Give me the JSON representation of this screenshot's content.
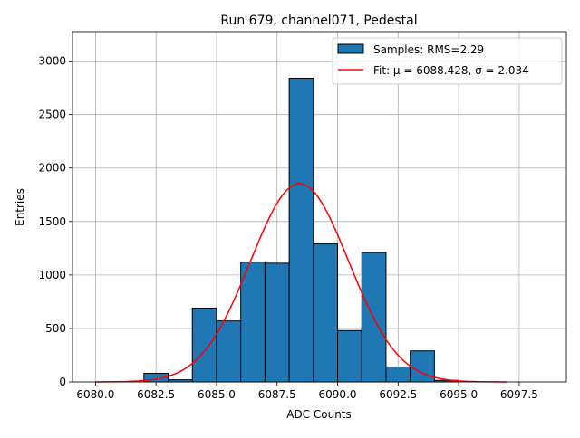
{
  "chart_data": {
    "type": "bar",
    "title": "Run 679, channel071, Pedestal",
    "xlabel": "ADC Counts",
    "ylabel": "Entries",
    "xlim": [
      6079.05,
      6099.45
    ],
    "ylim": [
      0,
      3276
    ],
    "grid": true,
    "legend_position": "top-right",
    "x_ticks": [
      6080.0,
      6082.5,
      6085.0,
      6087.5,
      6090.0,
      6092.5,
      6095.0,
      6097.5
    ],
    "x_tick_labels": [
      "6080.0",
      "6082.5",
      "6085.0",
      "6087.5",
      "6090.0",
      "6092.5",
      "6095.0",
      "6097.5"
    ],
    "y_ticks": [
      0,
      500,
      1000,
      1500,
      2000,
      2500,
      3000
    ],
    "y_tick_labels": [
      "0",
      "500",
      "1000",
      "1500",
      "2000",
      "2500",
      "3000"
    ],
    "bin_width": 1,
    "bin_edges": [
      6082,
      6083,
      6084,
      6085,
      6086,
      6087,
      6088,
      6089,
      6090,
      6091,
      6092,
      6093,
      6094
    ],
    "series": [
      {
        "name": "Samples: RMS=2.29",
        "type": "histogram",
        "color": "#1f77b4",
        "edgecolor": "#000000",
        "x_left": [
          6082,
          6083,
          6084,
          6085,
          6086,
          6087,
          6088,
          6089,
          6090,
          6091,
          6092,
          6093,
          6094
        ],
        "values": [
          80,
          20,
          690,
          570,
          1120,
          1110,
          2840,
          1290,
          480,
          1210,
          140,
          290,
          15
        ]
      },
      {
        "name": "Fit: μ = 6088.428, σ = 2.034",
        "type": "line",
        "color": "#ff0000",
        "mu": 6088.428,
        "sigma": 2.034,
        "amplitude": 1855,
        "x_range": [
          6080.0,
          6097.0
        ]
      }
    ],
    "legend": [
      {
        "label": "Samples: RMS=2.29",
        "kind": "patch"
      },
      {
        "label": "Fit: μ = 6088.428, σ = 2.034",
        "kind": "line"
      }
    ]
  }
}
